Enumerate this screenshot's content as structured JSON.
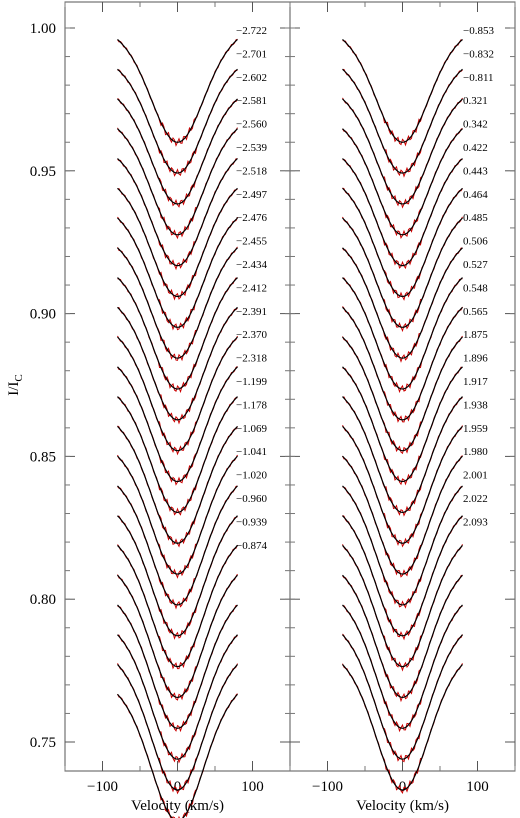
{
  "chart_data": {
    "type": "line",
    "ylabel": "I/I",
    "ylabel_sub": "C",
    "ylim": [
      0.745,
      1.01
    ],
    "yticks": [
      0.75,
      0.8,
      0.85,
      0.9,
      0.95,
      1.0
    ],
    "ytick_labels": [
      "0.75",
      "0.80",
      "0.85",
      "0.90",
      "0.95",
      "1.00"
    ],
    "grid": false,
    "series_colors": {
      "observed": "#cc0000",
      "model": "#000000"
    },
    "panels": [
      {
        "xlabel": "Velocity (km/s)",
        "xlim": [
          -150,
          150
        ],
        "xticks": [
          -100,
          0,
          100
        ],
        "xtick_labels": [
          "−100",
          "0",
          "100"
        ],
        "profile": {
          "x_range": [
            -80,
            80
          ],
          "continuum_top": 0.998,
          "continuum_step": 0.0104,
          "core_depth": 0.038
        },
        "labels": [
          "−2.722",
          "−2.701",
          "−2.602",
          "−2.581",
          "−2.560",
          "−2.539",
          "−2.518",
          "−2.497",
          "−2.476",
          "−2.455",
          "−2.434",
          "−2.412",
          "−2.391",
          "−2.370",
          "−2.318",
          "−1.199",
          "−1.178",
          "−1.069",
          "−1.041",
          "−1.020",
          "−0.960",
          "−0.939",
          "−0.874"
        ]
      },
      {
        "xlabel": "Velocity (km/s)",
        "xlim": [
          -150,
          150
        ],
        "xticks": [
          -100,
          0,
          100
        ],
        "xtick_labels": [
          "−100",
          "0",
          "100"
        ],
        "profile": {
          "x_range": [
            -80,
            80
          ],
          "continuum_top": 0.998,
          "continuum_step": 0.0104,
          "core_depth": 0.038
        },
        "labels": [
          "−0.853",
          "−0.832",
          "−0.811",
          "0.321",
          "0.342",
          "0.422",
          "0.443",
          "0.464",
          "0.485",
          "0.506",
          "0.527",
          "0.548",
          "0.565",
          "1.875",
          "1.896",
          "1.917",
          "1.938",
          "1.959",
          "1.980",
          "2.001",
          "2.022",
          "2.093"
        ]
      }
    ]
  }
}
